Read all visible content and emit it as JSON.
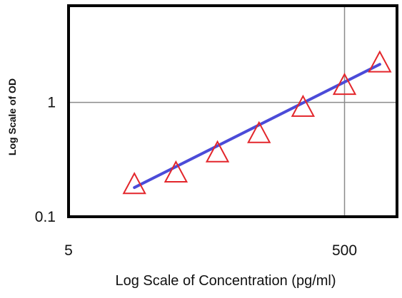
{
  "chart_data": {
    "type": "scatter",
    "title": "",
    "xlabel": "Log Scale of Concentration (pg/ml)",
    "ylabel": "Log Scale of OD",
    "x_scale": "log",
    "y_scale": "log",
    "xlim": [
      5,
      1200
    ],
    "ylim": [
      0.1,
      7
    ],
    "x_ticks": [
      {
        "value": 5,
        "label": "5"
      },
      {
        "value": 500,
        "label": "500"
      }
    ],
    "y_ticks": [
      {
        "value": 0.1,
        "label": "0.1"
      },
      {
        "value": 1,
        "label": "1"
      }
    ],
    "grid": true,
    "legend": "none",
    "series": [
      {
        "kind": "points",
        "marker": "open-triangle",
        "color": "#e3262b",
        "x": [
          15,
          30,
          60,
          120,
          250,
          500,
          900
        ],
        "y": [
          0.19,
          0.24,
          0.36,
          0.53,
          0.9,
          1.4,
          2.2
        ]
      },
      {
        "kind": "fit-line",
        "color": "#4b4bd8",
        "x": [
          15,
          900
        ],
        "y": [
          0.18,
          2.15
        ]
      }
    ]
  }
}
